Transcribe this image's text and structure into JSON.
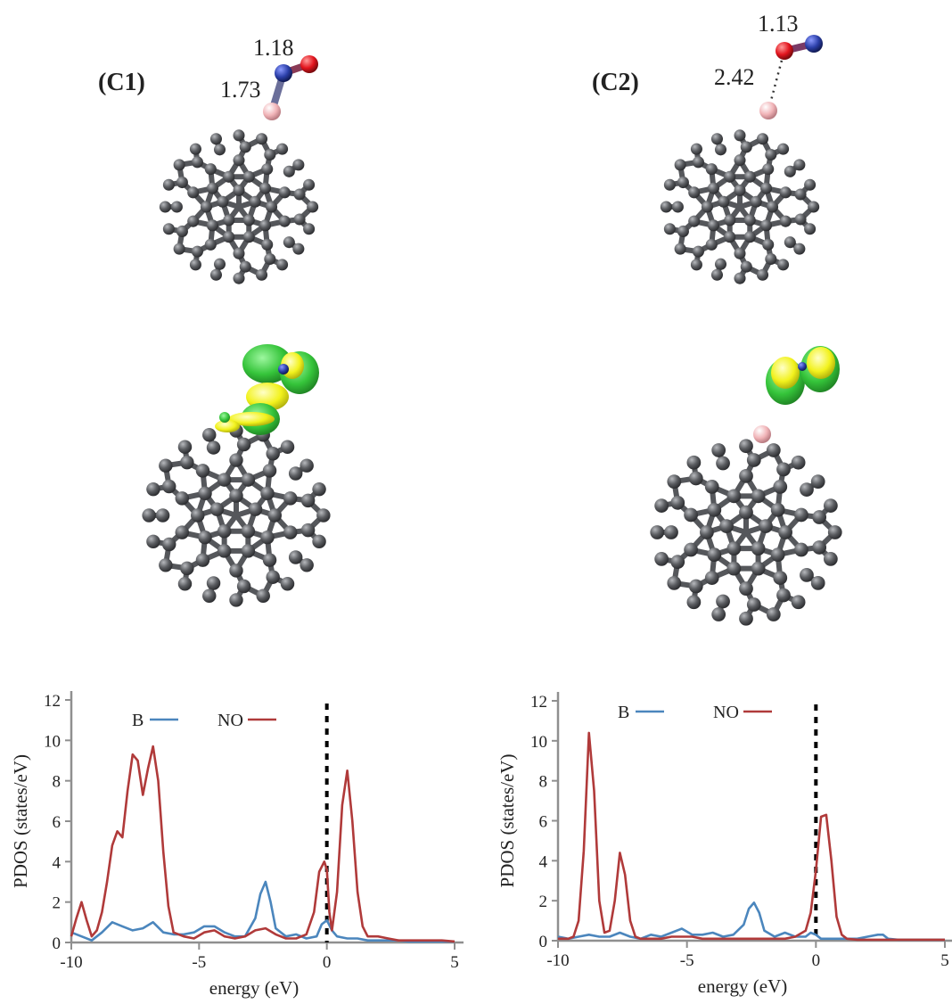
{
  "panels": {
    "c1": {
      "label": "(C1)",
      "bond_lengths": [
        "1.18",
        "1.73"
      ]
    },
    "c2": {
      "label": "(C2)",
      "bond_lengths": [
        "1.13",
        "2.42"
      ]
    }
  },
  "colors": {
    "carbon": "#5b5d61",
    "boron": "#f1b4b8",
    "nitrogen": "#2b3fa8",
    "oxygen": "#e2141d",
    "orbital_green": "#35c43a",
    "orbital_yellow": "#f2f21d",
    "series_B": "#4b86bd",
    "series_NO": "#b03a3a"
  },
  "chart_data": [
    {
      "type": "line",
      "xlabel": "energy (eV)",
      "ylabel": "PDOS (states/eV)",
      "xlim": [
        -10,
        5
      ],
      "ylim": [
        0,
        12
      ],
      "xticks": [
        "-10",
        "-5",
        "0",
        "5"
      ],
      "yticks": [
        "0",
        "2",
        "4",
        "6",
        "8",
        "10",
        "12"
      ],
      "fermi_level": 0,
      "legend_placement": "top",
      "series": [
        {
          "name": "B",
          "color": "#4b86bd",
          "x": [
            -10.0,
            -9.6,
            -9.2,
            -8.8,
            -8.4,
            -8.0,
            -7.6,
            -7.2,
            -6.8,
            -6.4,
            -6.0,
            -5.6,
            -5.2,
            -4.8,
            -4.4,
            -4.0,
            -3.6,
            -3.2,
            -2.8,
            -2.6,
            -2.4,
            -2.2,
            -2.0,
            -1.6,
            -1.2,
            -0.8,
            -0.4,
            -0.2,
            0.0,
            0.2,
            0.4,
            0.8,
            1.2,
            1.6,
            2.0,
            2.4,
            2.8,
            3.2,
            3.6,
            4.0,
            4.4,
            5.0
          ],
          "y": [
            0.5,
            0.3,
            0.1,
            0.5,
            1.0,
            0.8,
            0.6,
            0.7,
            1.0,
            0.5,
            0.4,
            0.4,
            0.5,
            0.8,
            0.8,
            0.5,
            0.3,
            0.3,
            1.2,
            2.4,
            3.0,
            2.0,
            0.7,
            0.3,
            0.4,
            0.2,
            0.3,
            0.9,
            1.1,
            0.6,
            0.3,
            0.2,
            0.2,
            0.1,
            0.1,
            0.1,
            0.1,
            0.05,
            0.05,
            0.05,
            0.05,
            0.05
          ]
        },
        {
          "name": "NO",
          "color": "#b03a3a",
          "x": [
            -10.0,
            -9.8,
            -9.6,
            -9.4,
            -9.2,
            -9.0,
            -8.8,
            -8.6,
            -8.4,
            -8.2,
            -8.0,
            -7.8,
            -7.6,
            -7.4,
            -7.2,
            -7.0,
            -6.8,
            -6.6,
            -6.4,
            -6.2,
            -6.0,
            -5.6,
            -5.2,
            -4.8,
            -4.4,
            -4.0,
            -3.6,
            -3.2,
            -2.8,
            -2.4,
            -2.0,
            -1.6,
            -1.2,
            -0.8,
            -0.5,
            -0.3,
            -0.1,
            0.0,
            0.1,
            0.2,
            0.4,
            0.6,
            0.8,
            1.0,
            1.2,
            1.4,
            1.6,
            2.0,
            2.4,
            2.8,
            3.2,
            3.6,
            4.0,
            4.5,
            5.0
          ],
          "y": [
            0.3,
            1.2,
            2.0,
            1.1,
            0.3,
            0.6,
            1.5,
            3.0,
            4.8,
            5.5,
            5.2,
            7.5,
            9.3,
            9.0,
            7.3,
            8.6,
            9.7,
            8.0,
            4.5,
            1.8,
            0.5,
            0.3,
            0.2,
            0.5,
            0.6,
            0.3,
            0.2,
            0.3,
            0.6,
            0.7,
            0.4,
            0.2,
            0.2,
            0.4,
            1.5,
            3.5,
            4.0,
            3.6,
            1.5,
            0.6,
            2.5,
            6.8,
            8.5,
            6.0,
            2.5,
            0.8,
            0.3,
            0.3,
            0.2,
            0.1,
            0.1,
            0.1,
            0.1,
            0.1,
            0.05
          ]
        }
      ]
    },
    {
      "type": "line",
      "xlabel": "energy (eV)",
      "ylabel": "PDOS (states/eV)",
      "xlim": [
        -10,
        5
      ],
      "ylim": [
        0,
        12
      ],
      "xticks": [
        "-10",
        "-5",
        "0",
        "5"
      ],
      "yticks": [
        "0",
        "2",
        "4",
        "6",
        "8",
        "10",
        "12"
      ],
      "fermi_level": 0,
      "legend_placement": "top",
      "series": [
        {
          "name": "B",
          "color": "#4b86bd",
          "x": [
            -10.0,
            -9.6,
            -9.2,
            -8.8,
            -8.4,
            -8.0,
            -7.6,
            -7.2,
            -6.8,
            -6.4,
            -6.0,
            -5.6,
            -5.2,
            -4.8,
            -4.4,
            -4.0,
            -3.6,
            -3.2,
            -2.8,
            -2.6,
            -2.4,
            -2.2,
            -2.0,
            -1.6,
            -1.2,
            -0.8,
            -0.4,
            -0.2,
            0.0,
            0.2,
            0.4,
            0.8,
            1.2,
            1.6,
            2.0,
            2.4,
            2.6,
            2.8,
            3.2,
            3.6,
            4.0,
            5.0
          ],
          "y": [
            0.2,
            0.1,
            0.2,
            0.3,
            0.2,
            0.2,
            0.4,
            0.2,
            0.1,
            0.3,
            0.2,
            0.4,
            0.6,
            0.3,
            0.3,
            0.4,
            0.2,
            0.3,
            0.8,
            1.6,
            1.9,
            1.4,
            0.5,
            0.2,
            0.4,
            0.2,
            0.2,
            0.4,
            0.3,
            0.1,
            0.1,
            0.1,
            0.1,
            0.1,
            0.2,
            0.3,
            0.3,
            0.1,
            0.05,
            0.05,
            0.05,
            0.05
          ]
        },
        {
          "name": "NO",
          "color": "#b03a3a",
          "x": [
            -10.0,
            -9.6,
            -9.4,
            -9.2,
            -9.0,
            -8.8,
            -8.6,
            -8.4,
            -8.2,
            -8.0,
            -7.8,
            -7.6,
            -7.4,
            -7.2,
            -7.0,
            -6.8,
            -6.4,
            -6.0,
            -5.6,
            -5.2,
            -4.8,
            -4.4,
            -4.0,
            -3.6,
            -3.2,
            -2.8,
            -2.4,
            -2.0,
            -1.6,
            -1.2,
            -0.8,
            -0.4,
            -0.2,
            0.0,
            0.2,
            0.4,
            0.6,
            0.8,
            1.0,
            1.2,
            1.6,
            2.0,
            2.4,
            2.8,
            3.2,
            3.6,
            4.0,
            4.5,
            5.0
          ],
          "y": [
            0.1,
            0.1,
            0.2,
            1.0,
            4.5,
            10.4,
            7.5,
            2.0,
            0.4,
            0.5,
            2.0,
            4.4,
            3.3,
            1.0,
            0.2,
            0.1,
            0.1,
            0.1,
            0.2,
            0.2,
            0.2,
            0.1,
            0.1,
            0.1,
            0.1,
            0.1,
            0.1,
            0.1,
            0.1,
            0.1,
            0.2,
            0.5,
            1.4,
            3.5,
            6.2,
            6.3,
            4.0,
            1.2,
            0.3,
            0.1,
            0.05,
            0.05,
            0.05,
            0.05,
            0.05,
            0.05,
            0.05,
            0.05,
            0.05
          ]
        }
      ]
    }
  ]
}
